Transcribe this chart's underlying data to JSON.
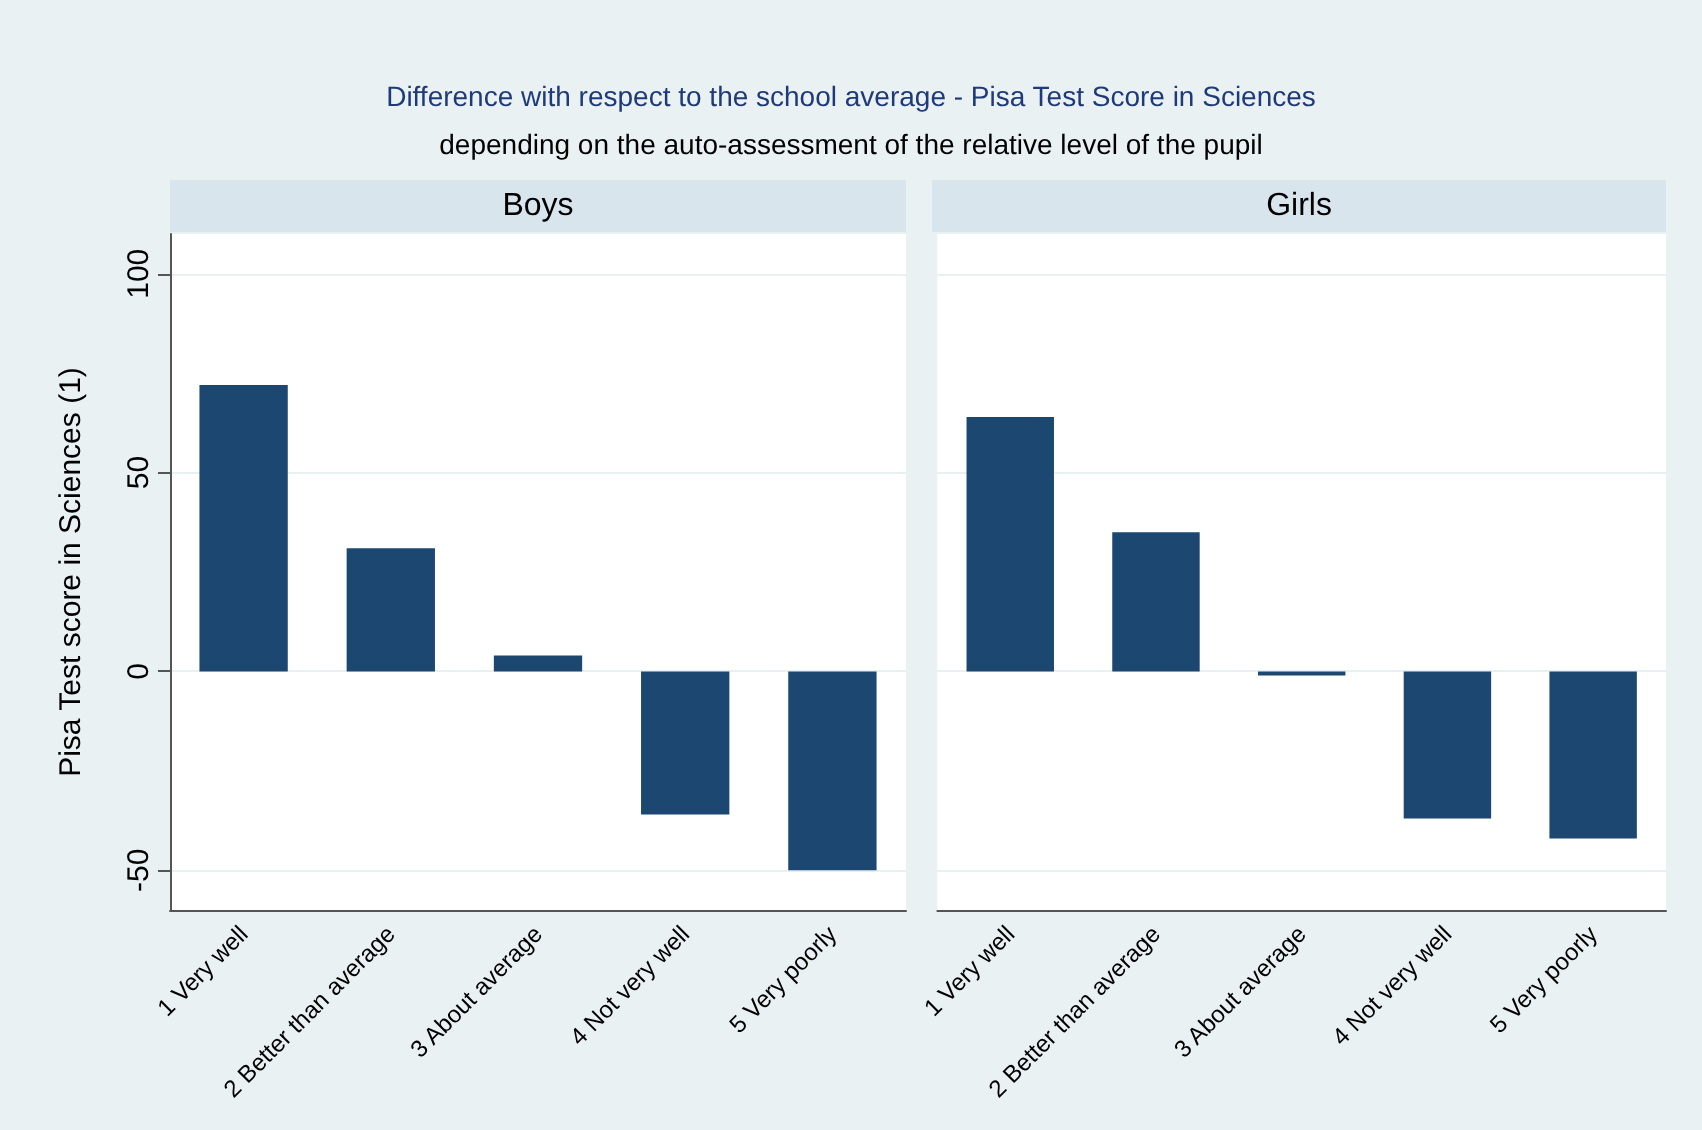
{
  "chart_data": [
    {
      "type": "bar",
      "title": "Difference with respect to the school average - Pisa Test Score in Sciences",
      "subtitle": "depending on the auto-assessment of the relative level of the pupil",
      "annotations": [
        "Boys"
      ],
      "ylabel": "Pisa Test score in Sciences (1)",
      "categories": [
        "1 Very well",
        "2 Better than average",
        "3 About average",
        "4 Not very well",
        "5 Very poorly"
      ],
      "values": [
        72,
        31,
        4,
        -36,
        -50
      ],
      "color": "#1c4770",
      "ylim": [
        -60,
        110
      ],
      "yticks": [
        -50,
        0,
        50,
        100
      ],
      "grid": "y"
    },
    {
      "type": "bar",
      "annotations": [
        "Girls"
      ],
      "categories": [
        "1 Very well",
        "2 Better than average",
        "3 About average",
        "4 Not very well",
        "5 Very poorly"
      ],
      "values": [
        64,
        35,
        -1,
        -37,
        -42
      ],
      "color": "#1c4770",
      "ylim": [
        -60,
        110
      ],
      "yticks": [
        -50,
        0,
        50,
        100
      ],
      "grid": "y",
      "tick_labels": "x"
    }
  ]
}
